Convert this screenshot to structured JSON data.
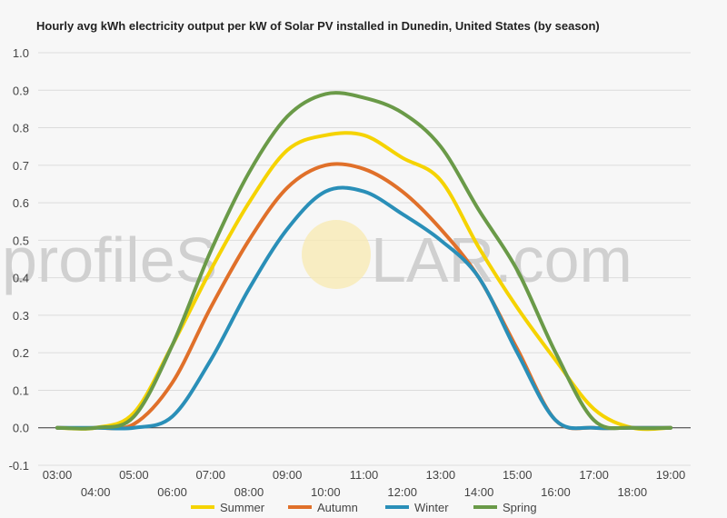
{
  "watermark": {
    "text_left": "profileS",
    "text_right": "LAR.com",
    "sun_color": "#f8e9b0"
  },
  "chart_data": {
    "type": "line",
    "title": "Hourly avg kWh electricity output per kW of Solar PV installed in Dunedin, United States (by season)",
    "xlabel": "",
    "ylabel": "",
    "x": [
      "03:00",
      "04:00",
      "05:00",
      "06:00",
      "07:00",
      "08:00",
      "09:00",
      "10:00",
      "11:00",
      "12:00",
      "13:00",
      "14:00",
      "15:00",
      "16:00",
      "17:00",
      "18:00",
      "19:00"
    ],
    "yticks": [
      "-0.1",
      "0.0",
      "0.1",
      "0.2",
      "0.3",
      "0.4",
      "0.5",
      "0.6",
      "0.7",
      "0.8",
      "0.9",
      "1.0"
    ],
    "ylim": [
      -0.1,
      1.0
    ],
    "grid": true,
    "legend": "bottom",
    "series": [
      {
        "name": "Summer",
        "color": "#f5d300",
        "values": [
          0.0,
          0.0,
          0.04,
          0.22,
          0.42,
          0.6,
          0.74,
          0.78,
          0.78,
          0.72,
          0.66,
          0.48,
          0.32,
          0.18,
          0.05,
          0.0,
          0.0
        ]
      },
      {
        "name": "Autumn",
        "color": "#e0702a",
        "values": [
          0.0,
          0.0,
          0.01,
          0.12,
          0.32,
          0.5,
          0.64,
          0.7,
          0.69,
          0.63,
          0.53,
          0.4,
          0.21,
          0.02,
          0.0,
          0.0,
          0.0
        ]
      },
      {
        "name": "Winter",
        "color": "#2a8fb8",
        "values": [
          0.0,
          0.0,
          0.0,
          0.03,
          0.18,
          0.37,
          0.53,
          0.63,
          0.63,
          0.57,
          0.5,
          0.4,
          0.2,
          0.02,
          0.0,
          0.0,
          0.0
        ]
      },
      {
        "name": "Spring",
        "color": "#6a9a48",
        "values": [
          0.0,
          0.0,
          0.03,
          0.22,
          0.47,
          0.68,
          0.83,
          0.89,
          0.88,
          0.84,
          0.75,
          0.58,
          0.42,
          0.2,
          0.02,
          0.0,
          0.0
        ]
      }
    ]
  }
}
